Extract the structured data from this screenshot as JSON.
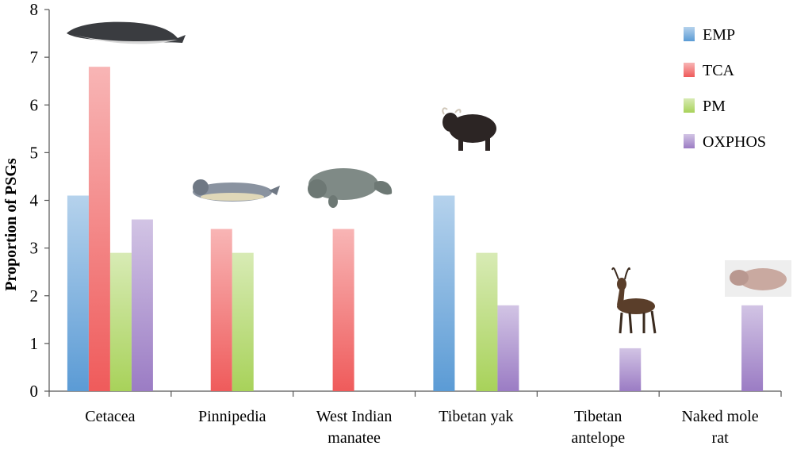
{
  "chart_data": {
    "type": "bar",
    "title": "",
    "xlabel": "",
    "ylabel": "Proportion of PSGs",
    "ylim": [
      0,
      8
    ],
    "yticks": [
      0,
      1,
      2,
      3,
      4,
      5,
      6,
      7,
      8
    ],
    "grid": false,
    "legend_position": "top-right",
    "categories": [
      [
        "Cetacea"
      ],
      [
        "Pinnipedia"
      ],
      [
        "West Indian",
        "manatee"
      ],
      [
        "Tibetan yak"
      ],
      [
        "Tibetan",
        "antelope"
      ],
      [
        "Naked mole",
        "rat"
      ]
    ],
    "series": [
      {
        "name": "EMP",
        "color": "#5b9bd5",
        "values": [
          4.1,
          0,
          0,
          4.1,
          0,
          0
        ]
      },
      {
        "name": "TCA",
        "color": "#ef5b5b",
        "values": [
          6.8,
          3.4,
          3.4,
          0,
          0,
          0
        ]
      },
      {
        "name": "PM",
        "color": "#a8d25a",
        "values": [
          2.9,
          2.9,
          0,
          2.9,
          0,
          0
        ]
      },
      {
        "name": "OXPHOS",
        "color": "#9b7cc4",
        "values": [
          3.6,
          0,
          0,
          1.8,
          0.9,
          1.8
        ]
      }
    ],
    "animal_icons": [
      "whale-icon",
      "seal-icon",
      "manatee-icon",
      "yak-icon",
      "antelope-icon",
      "mole-rat-icon"
    ]
  }
}
